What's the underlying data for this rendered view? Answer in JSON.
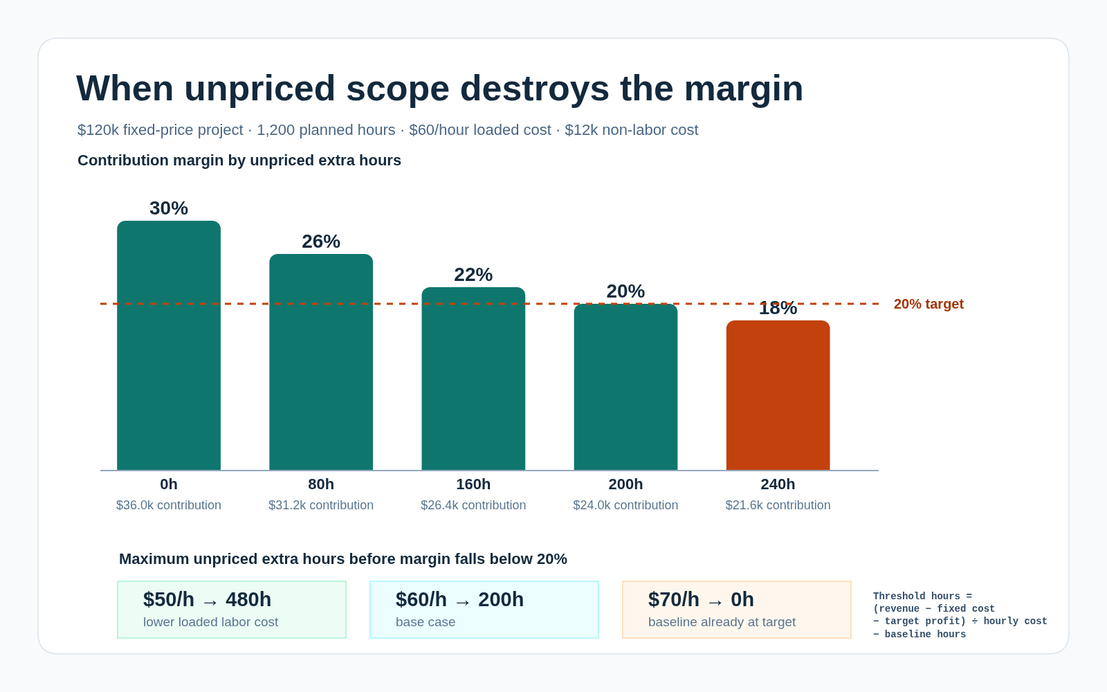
{
  "chart_data": {
    "type": "bar",
    "title": "When unpriced scope destroys the margin",
    "subtitle": "$120k fixed-price project · 1,200 planned hours · $60/hour loaded cost · $12k non-labor cost",
    "categories": [
      "0h\n$36.0k contribution",
      "80h\n$31.2k contribution",
      "160h\n$26.4k contribution",
      "200h\n$24.0k contribution",
      "240h\n$21.6k contribution"
    ],
    "values": [
      30,
      26,
      22,
      20,
      18
    ],
    "value_labels": [
      "30%",
      "26%",
      "22%",
      "20%",
      "18%"
    ],
    "colors": [
      "#0f766e",
      "#0f766e",
      "#0f766e",
      "#0f766e",
      "#c2410c"
    ],
    "tick_labels": "x",
    "ref_lines": [
      {
        "axis": "y",
        "value": 20,
        "label": "20% target",
        "color": "#c2410c",
        "line_style": "dashed"
      }
    ],
    "annotations": [
      "Contribution margin by unpriced extra hours",
      "Maximum unpriced extra hours before margin falls below 20%",
      "$50/h → 480h",
      "lower loaded labor cost",
      "$60/h → 200h",
      "base case",
      "$70/h → 0h",
      "baseline already at target",
      "Threshold hours =\n(revenue − fixed cost\n− target profit) ÷ hourly cost\n− baseline hours"
    ]
  }
}
